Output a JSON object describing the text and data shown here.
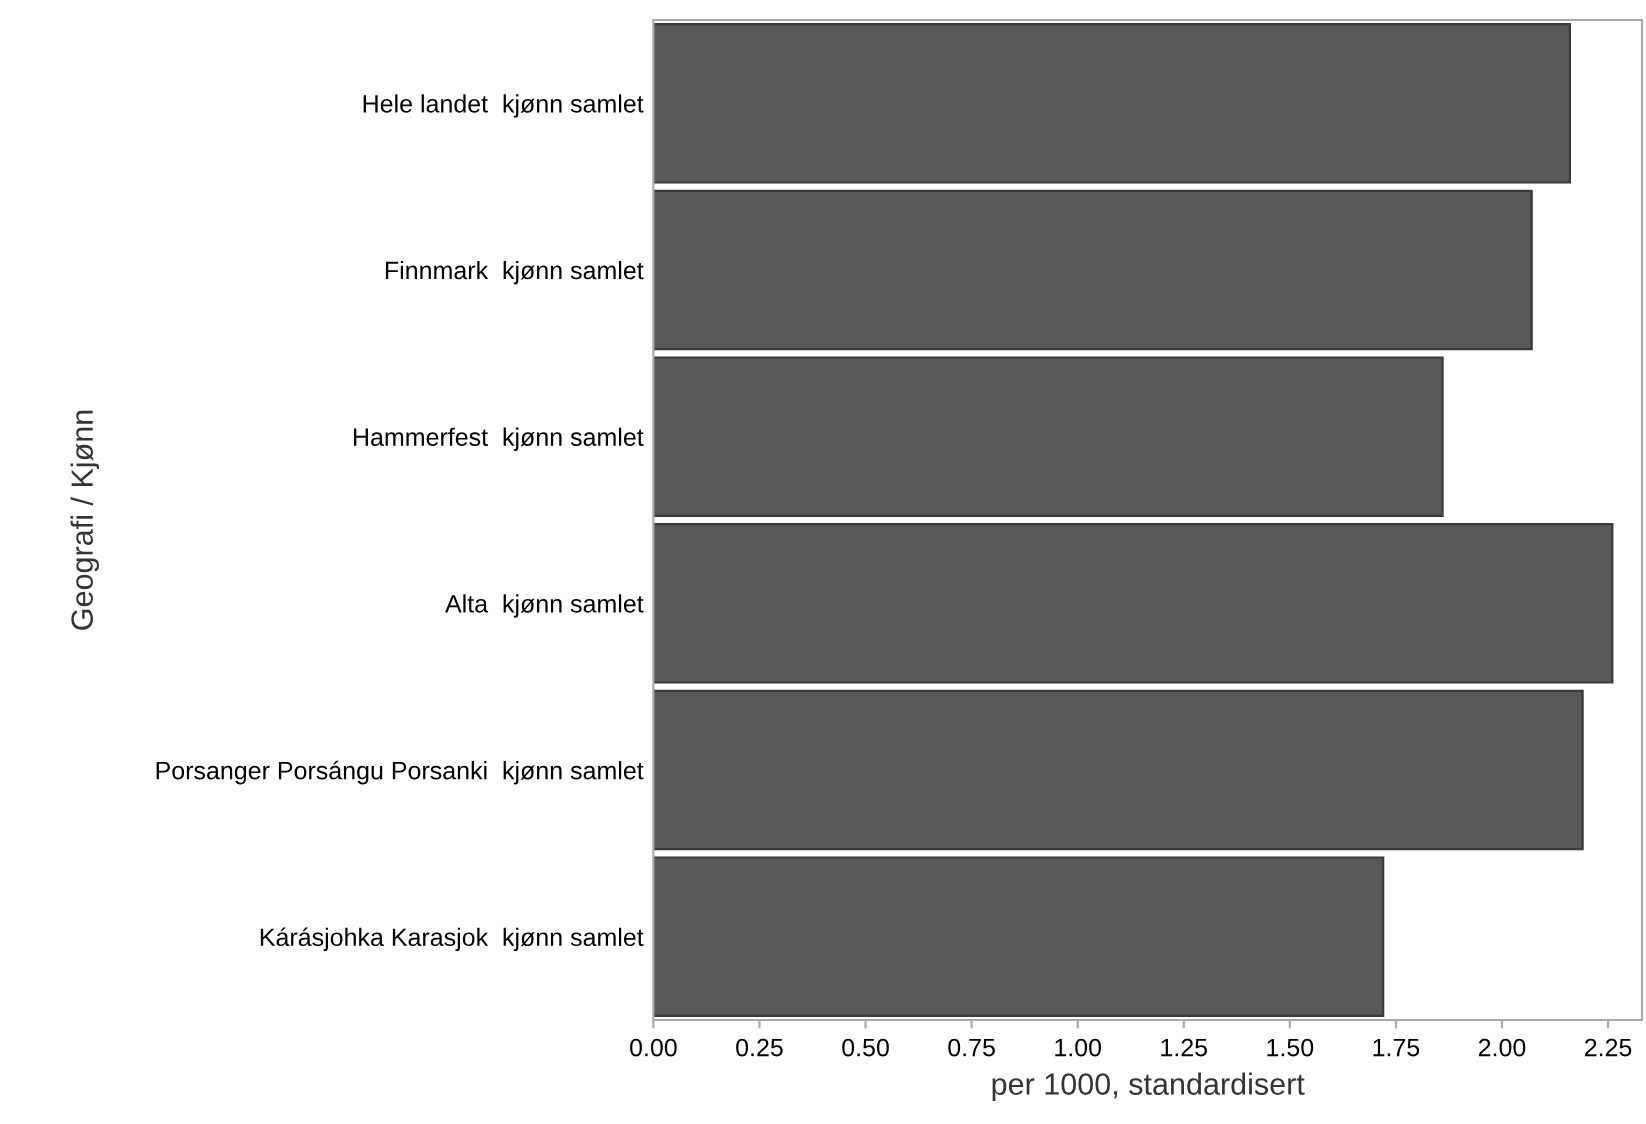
{
  "chart_data": {
    "type": "bar",
    "orientation": "horizontal",
    "categories": [
      "Hele landet  kjønn samlet",
      "Finnmark  kjønn samlet",
      "Hammerfest  kjønn samlet",
      "Alta  kjønn samlet",
      "Porsanger Porsángu Porsanki  kjønn samlet",
      "Kárásjohka Karasjok  kjønn samlet"
    ],
    "values": [
      2.16,
      2.07,
      1.86,
      2.26,
      2.19,
      1.72
    ],
    "color": "#595959",
    "xlim": [
      0,
      2.33
    ],
    "xticks": [
      {
        "value": 0,
        "label": "0.00"
      },
      0.25,
      {
        "value": 0.5,
        "label": "0.50"
      },
      0.75,
      {
        "value": 1,
        "label": "1.00"
      },
      1.25,
      {
        "value": 1.5,
        "label": "1.50"
      },
      1.75,
      {
        "value": 2,
        "label": "2.00"
      },
      2.25
    ],
    "xlabel": "per 1000, standardisert",
    "ylabel": "Geografi / Kjønn",
    "grid": false
  }
}
